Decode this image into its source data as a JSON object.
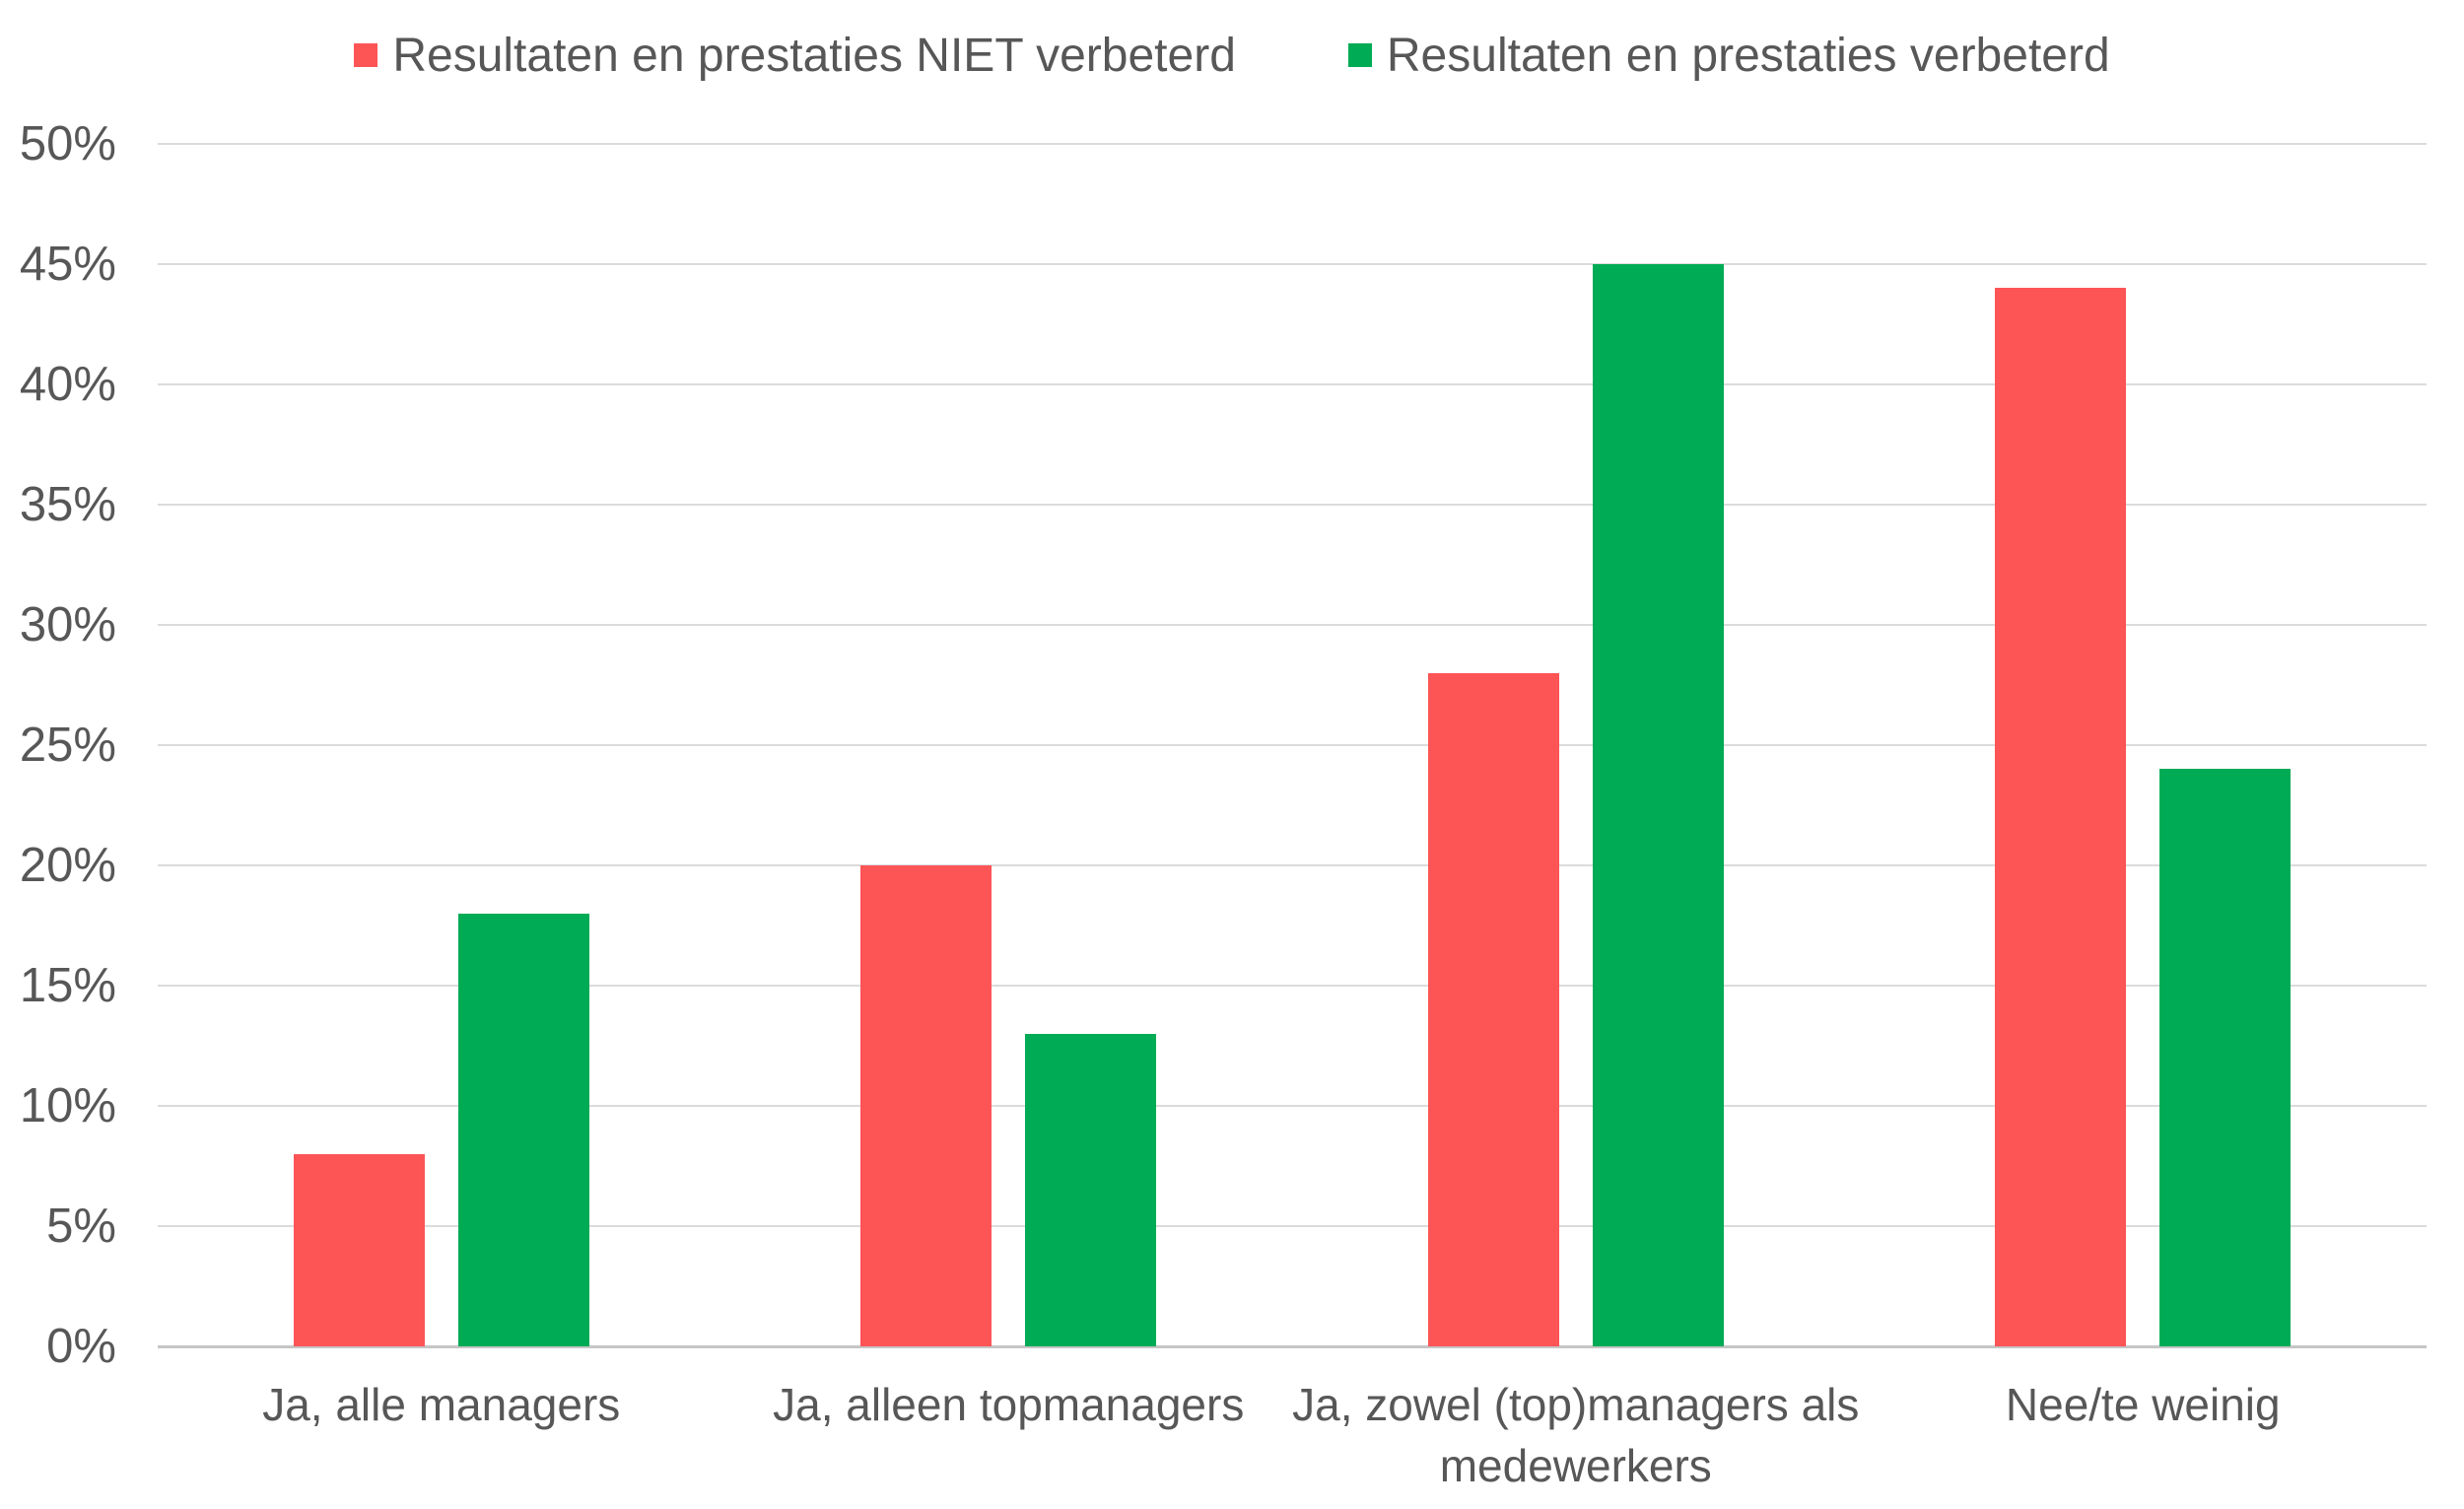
{
  "chart_data": {
    "type": "bar",
    "title": "",
    "xlabel": "",
    "ylabel": "",
    "categories": [
      "Ja, alle managers",
      "Ja, alleen topmanagers",
      "Ja, zowel (top)managers als medewerkers",
      "Nee/te weinig"
    ],
    "series": [
      {
        "name": "Resultaten en prestaties NIET verbeterd",
        "color": "#FD5456",
        "values": [
          8,
          20,
          28,
          44
        ]
      },
      {
        "name": "Resultaten en prestaties verbeterd",
        "color": "#00AB55",
        "values": [
          18,
          13,
          45,
          24
        ]
      }
    ],
    "ylim": [
      0,
      50
    ],
    "ytick_step": 5,
    "yticks": [
      "0%",
      "5%",
      "10%",
      "15%",
      "20%",
      "25%",
      "30%",
      "35%",
      "40%",
      "45%",
      "50%"
    ],
    "grid": true,
    "legend_position": "top"
  },
  "style": {
    "text_color": "#575757",
    "gridline_color": "#dbdbdb",
    "baseline_color": "#c6c6c6",
    "background_color": "#ffffff"
  }
}
